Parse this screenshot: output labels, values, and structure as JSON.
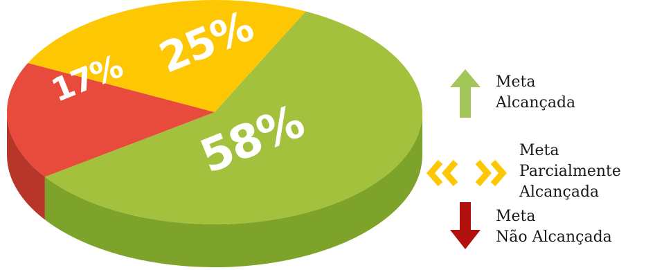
{
  "chart_data": {
    "type": "pie",
    "style": "3d",
    "slices": [
      {
        "label": "58%",
        "value": 58,
        "color": "#a3c13c",
        "side_color": "#7ea32b"
      },
      {
        "label": "17%",
        "value": 17,
        "color": "#e84b3c",
        "side_color": "#b8352a"
      },
      {
        "label": "25%",
        "value": 25,
        "color": "#fdc703",
        "side_color": "#d7a600"
      }
    ],
    "legend_placement": "right"
  },
  "legend": {
    "achieved": {
      "line1": "Meta",
      "line2": "Alcançada",
      "icon": "up-arrow-icon",
      "color": "#a3c65a"
    },
    "partial": {
      "line1": "Meta",
      "line2": "Parcialmente",
      "line3": "Alcançada",
      "icon": "double-chevron-icon",
      "color": "#fdc703"
    },
    "not_achieved": {
      "line1": "Meta",
      "line2": "Não Alcançada",
      "icon": "down-arrow-icon",
      "color": "#b0110d"
    }
  }
}
